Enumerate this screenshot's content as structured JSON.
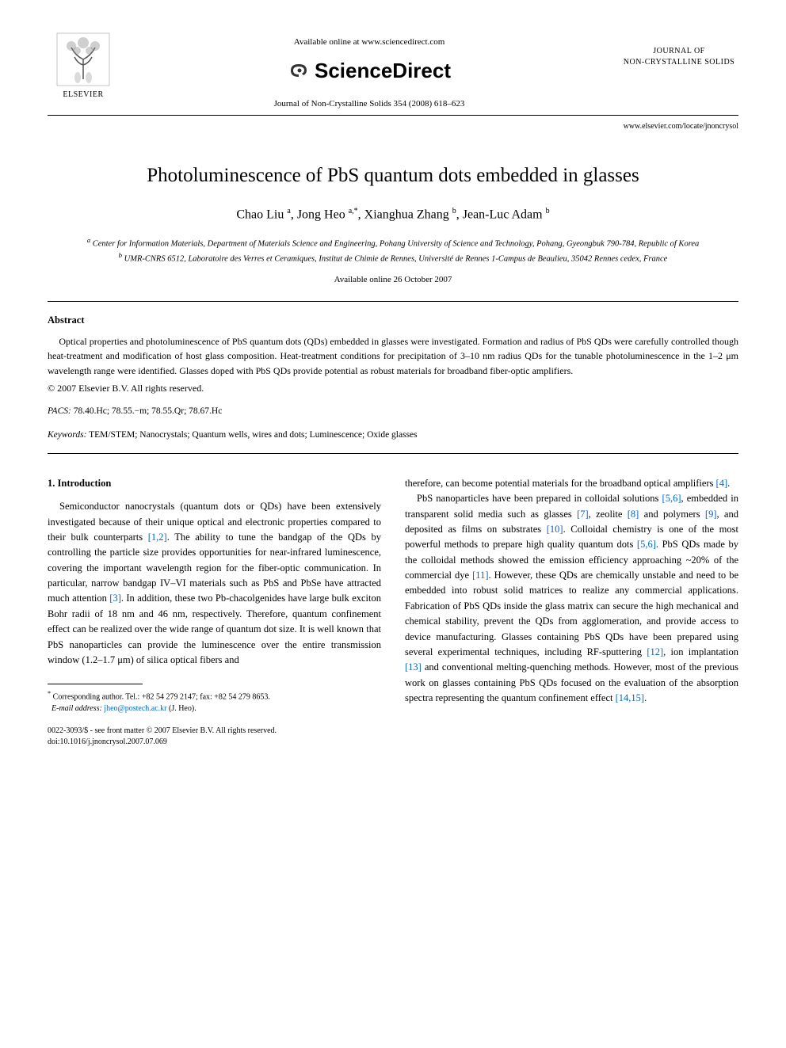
{
  "header": {
    "elsevier_label": "ELSEVIER",
    "available_online": "Available online at www.sciencedirect.com",
    "sciencedirect": "ScienceDirect",
    "journal_ref": "Journal of Non-Crystalline Solids 354 (2008) 618–623",
    "journal_box_line1": "JOURNAL OF",
    "journal_box_line2": "NON-CRYSTALLINE SOLIDS",
    "locate_url": "www.elsevier.com/locate/jnoncrysol"
  },
  "title": "Photoluminescence of PbS quantum dots embedded in glasses",
  "authors_html": "Chao Liu <sup>a</sup>, Jong Heo <sup>a,*</sup>, Xianghua Zhang <sup>b</sup>, Jean-Luc Adam <sup>b</sup>",
  "affiliations": {
    "a": "Center for Information Materials, Department of Materials Science and Engineering, Pohang University of Science and Technology, Pohang, Gyeongbuk 790-784, Republic of Korea",
    "b": "UMR-CNRS 6512, Laboratoire des Verres et Ceramiques, Institut de Chimie de Rennes, Université de Rennes 1-Campus de Beaulieu, 35042 Rennes cedex, France"
  },
  "available_date": "Available online 26 October 2007",
  "abstract": {
    "heading": "Abstract",
    "text": "Optical properties and photoluminescence of PbS quantum dots (QDs) embedded in glasses were investigated. Formation and radius of PbS QDs were carefully controlled though heat-treatment and modification of host glass composition. Heat-treatment conditions for precipitation of 3–10 nm radius QDs for the tunable photoluminescence in the 1–2 μm wavelength range were identified. Glasses doped with PbS QDs provide potential as robust materials for broadband fiber-optic amplifiers.",
    "copyright": "© 2007 Elsevier B.V. All rights reserved."
  },
  "pacs": {
    "label": "PACS:",
    "value": "78.40.Hc; 78.55.−m; 78.55.Qr; 78.67.Hc"
  },
  "keywords": {
    "label": "Keywords:",
    "value": "TEM/STEM; Nanocrystals; Quantum wells, wires and dots; Luminescence; Oxide glasses"
  },
  "section1": {
    "heading": "1. Introduction",
    "col_left": "Semiconductor nanocrystals (quantum dots or QDs) have been extensively investigated because of their unique optical and electronic properties compared to their bulk counterparts <span class=\"cite\">[1,2]</span>. The ability to tune the bandgap of the QDs by controlling the particle size provides opportunities for near-infrared luminescence, covering the important wavelength region for the fiber-optic communication. In particular, narrow bandgap IV–VI materials such as PbS and PbSe have attracted much attention <span class=\"cite\">[3]</span>. In addition, these two Pb-chacolgenides have large bulk exciton Bohr radii of 18 nm and 46 nm, respectively. Therefore, quantum confinement effect can be realized over the wide range of quantum dot size. It is well known that PbS nanoparticles can provide the luminescence over the entire transmission window (1.2–1.7 μm) of silica optical fibers and",
    "col_right_p1": "therefore, can become potential materials for the broadband optical amplifiers <span class=\"cite\">[4]</span>.",
    "col_right_p2": "PbS nanoparticles have been prepared in colloidal solutions <span class=\"cite\">[5,6]</span>, embedded in transparent solid media such as glasses <span class=\"cite\">[7]</span>, zeolite <span class=\"cite\">[8]</span> and polymers <span class=\"cite\">[9]</span>, and deposited as films on substrates <span class=\"cite\">[10]</span>. Colloidal chemistry is one of the most powerful methods to prepare high quality quantum dots <span class=\"cite\">[5,6]</span>. PbS QDs made by the colloidal methods showed the emission efficiency approaching ~20% of the commercial dye <span class=\"cite\">[11]</span>. However, these QDs are chemically unstable and need to be embedded into robust solid matrices to realize any commercial applications. Fabrication of PbS QDs inside the glass matrix can secure the high mechanical and chemical stability, prevent the QDs from agglomeration, and provide access to device manufacturing. Glasses containing PbS QDs have been prepared using several experimental techniques, including RF-sputtering <span class=\"cite\">[12]</span>, ion implantation <span class=\"cite\">[13]</span> and conventional melting-quenching methods. However, most of the previous work on glasses containing PbS QDs focused on the evaluation of the absorption spectra representing the quantum confinement effect <span class=\"cite\">[14,15]</span>."
  },
  "footnote": {
    "corresponding": "Corresponding author. Tel.: +82 54 279 2147; fax: +82 54 279 8653.",
    "email_label": "E-mail address:",
    "email": "jheo@postech.ac.kr",
    "email_name": "(J. Heo)."
  },
  "doi": {
    "line1": "0022-3093/$ - see front matter © 2007 Elsevier B.V. All rights reserved.",
    "line2": "doi:10.1016/j.jnoncrysol.2007.07.069"
  },
  "colors": {
    "text": "#000000",
    "background": "#ffffff",
    "citation": "#0066cc",
    "elsevier_orange": "#ff6600"
  }
}
